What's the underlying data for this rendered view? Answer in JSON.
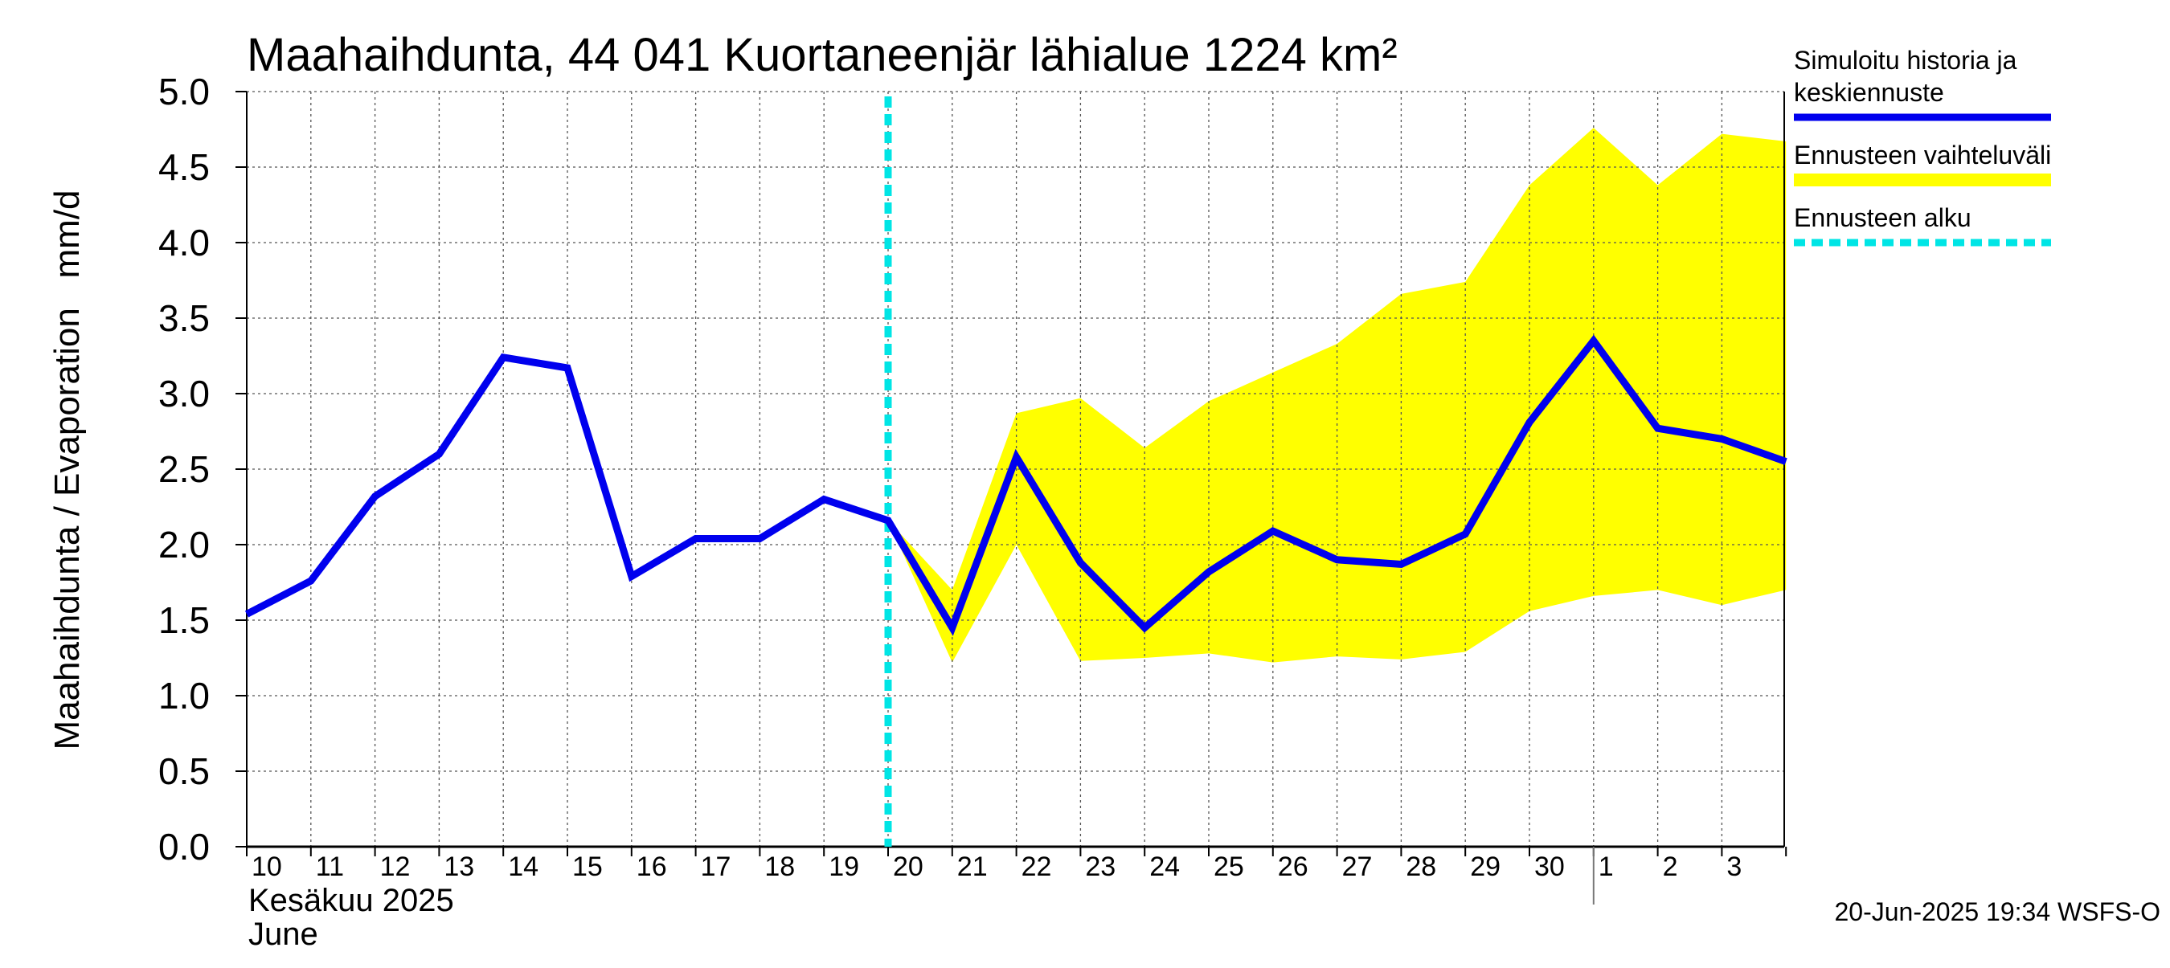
{
  "chart_data": {
    "type": "line",
    "title": "Maahaihdunta, 44 041 Kuortaneenjär lähialue 1224 km²",
    "ylabel": "Maahaihdunta / Evaporation   mm/d",
    "ylim": [
      0,
      5
    ],
    "yticks": [
      "0.0",
      "0.5",
      "1.0",
      "1.5",
      "2.0",
      "2.5",
      "3.0",
      "3.5",
      "4.0",
      "4.5",
      "5.0"
    ],
    "x_days": [
      "10",
      "11",
      "12",
      "13",
      "14",
      "15",
      "16",
      "17",
      "18",
      "19",
      "20",
      "21",
      "22",
      "23",
      "24",
      "25",
      "26",
      "27",
      "28",
      "29",
      "30",
      "1",
      "2",
      "3"
    ],
    "month_label_fi": "Kesäkuu  2025",
    "month_label_en": "June",
    "series": [
      {
        "name": "Simuloitu historia ja keskiennuste",
        "color": "#0000ee",
        "points": [
          [
            0,
            1.54
          ],
          [
            1,
            1.76
          ],
          [
            2,
            2.32
          ],
          [
            3,
            2.6
          ],
          [
            4,
            3.24
          ],
          [
            5,
            3.17
          ],
          [
            6,
            1.79
          ],
          [
            7,
            2.04
          ],
          [
            8,
            2.04
          ],
          [
            9,
            2.3
          ],
          [
            10,
            2.16
          ],
          [
            11,
            1.45
          ],
          [
            12,
            2.58
          ],
          [
            13,
            1.88
          ],
          [
            14,
            1.45
          ],
          [
            15,
            1.82
          ],
          [
            16,
            2.09
          ],
          [
            17,
            1.9
          ],
          [
            18,
            1.87
          ],
          [
            19,
            2.07
          ],
          [
            20,
            2.81
          ],
          [
            21,
            3.35
          ],
          [
            22,
            2.77
          ],
          [
            23,
            2.7
          ],
          [
            24,
            2.55
          ]
        ]
      },
      {
        "name": "Ennusteen vaihteluväli",
        "color": "#ffff00",
        "upper": [
          [
            10,
            2.16
          ],
          [
            11,
            1.7
          ],
          [
            12,
            2.87
          ],
          [
            13,
            2.97
          ],
          [
            14,
            2.64
          ],
          [
            15,
            2.95
          ],
          [
            16,
            3.14
          ],
          [
            17,
            3.33
          ],
          [
            18,
            3.66
          ],
          [
            19,
            3.74
          ],
          [
            20,
            4.38
          ],
          [
            21,
            4.76
          ],
          [
            22,
            4.38
          ],
          [
            23,
            4.72
          ],
          [
            24,
            4.67
          ]
        ],
        "lower": [
          [
            10,
            2.16
          ],
          [
            11,
            1.22
          ],
          [
            12,
            2.0
          ],
          [
            13,
            1.23
          ],
          [
            14,
            1.25
          ],
          [
            15,
            1.28
          ],
          [
            16,
            1.22
          ],
          [
            17,
            1.26
          ],
          [
            18,
            1.24
          ],
          [
            19,
            1.29
          ],
          [
            20,
            1.56
          ],
          [
            21,
            1.66
          ],
          [
            22,
            1.7
          ],
          [
            23,
            1.6
          ],
          [
            24,
            1.7
          ]
        ]
      }
    ],
    "forecast_start_x": 10,
    "forecast_start_color": "#00e5e5",
    "legend": [
      {
        "label_lines": [
          "Simuloitu historia ja",
          "keskiennuste"
        ],
        "color": "#0000ee",
        "style": "solid"
      },
      {
        "label_lines": [
          "Ennusteen vaihteluväli"
        ],
        "color": "#ffff00",
        "style": "solid"
      },
      {
        "label_lines": [
          "Ennusteen alku"
        ],
        "color": "#00e5e5",
        "style": "dashed"
      }
    ],
    "legend_position": "right",
    "grid": true,
    "footer": "20-Jun-2025 19:34 WSFS-O"
  }
}
